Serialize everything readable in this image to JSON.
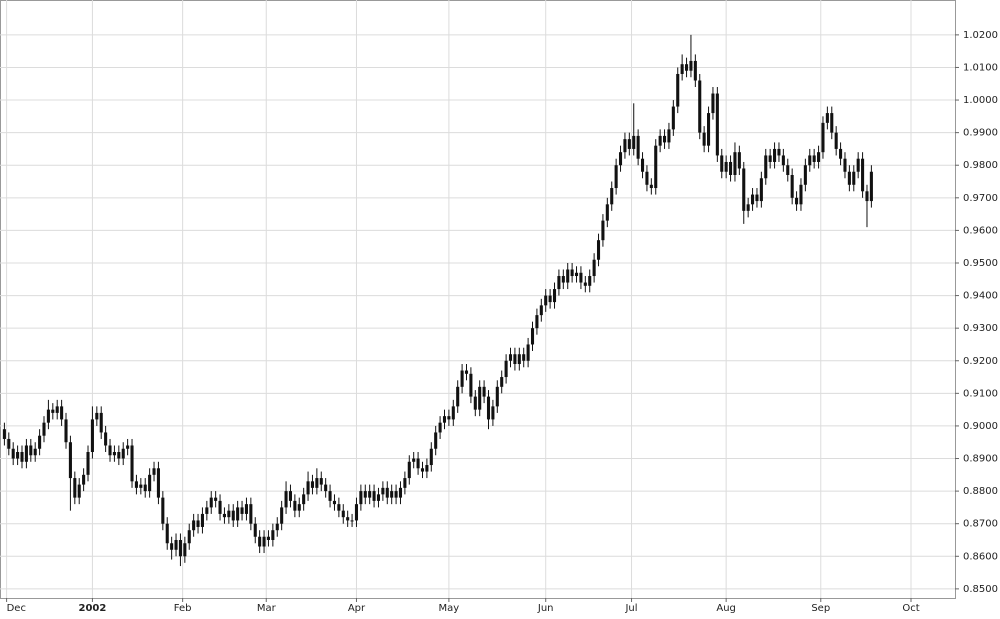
{
  "chart_data": {
    "type": "candlestick",
    "color": "#111111",
    "grid": true,
    "y_axis_side": "right",
    "xlim": [
      -1,
      216
    ],
    "xticks": [
      {
        "value": 0.5,
        "label": "Dec"
      },
      {
        "value": 20,
        "label": "2002"
      },
      {
        "value": 40.5,
        "label": "Feb"
      },
      {
        "value": 59.5,
        "label": "Mar"
      },
      {
        "value": 80,
        "label": "Apr"
      },
      {
        "value": 101,
        "label": "May"
      },
      {
        "value": 123,
        "label": "Jun"
      },
      {
        "value": 142.5,
        "label": "Jul"
      },
      {
        "value": 164,
        "label": "Aug"
      },
      {
        "value": 185.5,
        "label": "Sep"
      },
      {
        "value": 206,
        "label": "Oct"
      }
    ],
    "ylim": [
      0.8472,
      1.0307
    ],
    "yticks": [
      {
        "value": 0.85,
        "label": "0.8500"
      },
      {
        "value": 0.86,
        "label": "0.8600"
      },
      {
        "value": 0.87,
        "label": "0.8700"
      },
      {
        "value": 0.88,
        "label": "0.8800"
      },
      {
        "value": 0.89,
        "label": "0.8900"
      },
      {
        "value": 0.9,
        "label": "0.9000"
      },
      {
        "value": 0.91,
        "label": "0.9100"
      },
      {
        "value": 0.92,
        "label": "0.9200"
      },
      {
        "value": 0.93,
        "label": "0.9300"
      },
      {
        "value": 0.94,
        "label": "0.9400"
      },
      {
        "value": 0.95,
        "label": "0.9500"
      },
      {
        "value": 0.96,
        "label": "0.9600"
      },
      {
        "value": 0.97,
        "label": "0.9700"
      },
      {
        "value": 0.98,
        "label": "0.9800"
      },
      {
        "value": 0.99,
        "label": "0.9900"
      },
      {
        "value": 1.0,
        "label": "1.0000"
      },
      {
        "value": 1.01,
        "label": "1.0100"
      },
      {
        "value": 1.02,
        "label": "1.0200"
      }
    ],
    "open": [
      0.899,
      0.896,
      0.893,
      0.89,
      0.892,
      0.889,
      0.894,
      0.891,
      0.893,
      0.897,
      0.901,
      0.905,
      0.904,
      0.906,
      0.902,
      0.895,
      0.884,
      0.878,
      0.882,
      0.885,
      0.892,
      0.902,
      0.904,
      0.898,
      0.894,
      0.891,
      0.892,
      0.89,
      0.893,
      0.894,
      0.883,
      0.881,
      0.882,
      0.88,
      0.885,
      0.887,
      0.878,
      0.87,
      0.864,
      0.862,
      0.865,
      0.86,
      0.864,
      0.868,
      0.871,
      0.869,
      0.873,
      0.875,
      0.878,
      0.877,
      0.873,
      0.872,
      0.874,
      0.871,
      0.875,
      0.873,
      0.876,
      0.87,
      0.866,
      0.863,
      0.866,
      0.865,
      0.868,
      0.87,
      0.875,
      0.88,
      0.877,
      0.874,
      0.876,
      0.879,
      0.883,
      0.881,
      0.884,
      0.882,
      0.88,
      0.877,
      0.876,
      0.874,
      0.872,
      0.871,
      0.871,
      0.876,
      0.88,
      0.878,
      0.88,
      0.877,
      0.879,
      0.881,
      0.878,
      0.88,
      0.878,
      0.881,
      0.884,
      0.889,
      0.89,
      0.887,
      0.886,
      0.888,
      0.893,
      0.898,
      0.901,
      0.903,
      0.902,
      0.906,
      0.912,
      0.917,
      0.916,
      0.909,
      0.905,
      0.912,
      0.909,
      0.902,
      0.906,
      0.912,
      0.915,
      0.92,
      0.922,
      0.919,
      0.922,
      0.92,
      0.925,
      0.93,
      0.934,
      0.937,
      0.94,
      0.938,
      0.942,
      0.946,
      0.944,
      0.948,
      0.946,
      0.947,
      0.944,
      0.943,
      0.946,
      0.951,
      0.957,
      0.963,
      0.968,
      0.973,
      0.98,
      0.984,
      0.988,
      0.985,
      0.989,
      0.982,
      0.978,
      0.974,
      0.973,
      0.986,
      0.989,
      0.987,
      0.991,
      0.998,
      1.008,
      1.011,
      1.009,
      1.012,
      1.006,
      0.99,
      0.986,
      0.996,
      1.002,
      0.983,
      0.978,
      0.981,
      0.977,
      0.984,
      0.979,
      0.966,
      0.968,
      0.971,
      0.969,
      0.976,
      0.983,
      0.981,
      0.985,
      0.983,
      0.98,
      0.977,
      0.97,
      0.968,
      0.974,
      0.98,
      0.983,
      0.981,
      0.984,
      0.993,
      0.996,
      0.99,
      0.985,
      0.982,
      0.978,
      0.974,
      0.978,
      0.982,
      0.972,
      0.969
    ],
    "high": [
      0.901,
      0.898,
      0.895,
      0.894,
      0.894,
      0.896,
      0.896,
      0.895,
      0.899,
      0.903,
      0.908,
      0.907,
      0.908,
      0.908,
      0.904,
      0.897,
      0.886,
      0.884,
      0.887,
      0.894,
      0.906,
      0.906,
      0.906,
      0.9,
      0.896,
      0.894,
      0.894,
      0.895,
      0.896,
      0.896,
      0.885,
      0.884,
      0.884,
      0.887,
      0.889,
      0.889,
      0.88,
      0.872,
      0.866,
      0.867,
      0.867,
      0.866,
      0.87,
      0.873,
      0.873,
      0.875,
      0.877,
      0.88,
      0.88,
      0.879,
      0.875,
      0.876,
      0.876,
      0.877,
      0.877,
      0.878,
      0.878,
      0.872,
      0.868,
      0.868,
      0.868,
      0.87,
      0.872,
      0.877,
      0.883,
      0.882,
      0.879,
      0.878,
      0.881,
      0.886,
      0.885,
      0.887,
      0.886,
      0.884,
      0.882,
      0.879,
      0.878,
      0.876,
      0.874,
      0.873,
      0.878,
      0.882,
      0.882,
      0.882,
      0.882,
      0.881,
      0.883,
      0.883,
      0.882,
      0.882,
      0.883,
      0.886,
      0.891,
      0.892,
      0.892,
      0.889,
      0.89,
      0.895,
      0.9,
      0.903,
      0.905,
      0.905,
      0.908,
      0.914,
      0.919,
      0.919,
      0.918,
      0.911,
      0.914,
      0.914,
      0.911,
      0.908,
      0.914,
      0.917,
      0.922,
      0.924,
      0.924,
      0.924,
      0.924,
      0.927,
      0.932,
      0.936,
      0.939,
      0.942,
      0.942,
      0.944,
      0.948,
      0.948,
      0.95,
      0.95,
      0.949,
      0.949,
      0.946,
      0.948,
      0.953,
      0.959,
      0.965,
      0.97,
      0.975,
      0.982,
      0.986,
      0.99,
      0.99,
      0.999,
      0.991,
      0.984,
      0.98,
      0.976,
      0.988,
      0.991,
      0.991,
      0.993,
      1.0,
      1.01,
      1.014,
      1.013,
      1.02,
      1.014,
      1.008,
      0.992,
      0.998,
      1.004,
      1.004,
      0.985,
      0.983,
      0.983,
      0.987,
      0.986,
      0.981,
      0.97,
      0.973,
      0.973,
      0.978,
      0.985,
      0.985,
      0.987,
      0.987,
      0.985,
      0.982,
      0.979,
      0.972,
      0.976,
      0.982,
      0.985,
      0.985,
      0.986,
      0.995,
      0.998,
      0.998,
      0.992,
      0.987,
      0.984,
      0.98,
      0.98,
      0.984,
      0.984,
      0.974,
      0.98
    ],
    "low": [
      0.894,
      0.891,
      0.888,
      0.888,
      0.887,
      0.887,
      0.889,
      0.889,
      0.891,
      0.895,
      0.899,
      0.902,
      0.902,
      0.9,
      0.893,
      0.874,
      0.876,
      0.876,
      0.88,
      0.883,
      0.89,
      0.9,
      0.896,
      0.892,
      0.889,
      0.889,
      0.888,
      0.888,
      0.891,
      0.881,
      0.879,
      0.879,
      0.878,
      0.878,
      0.883,
      0.876,
      0.868,
      0.862,
      0.859,
      0.86,
      0.857,
      0.858,
      0.862,
      0.866,
      0.867,
      0.867,
      0.871,
      0.873,
      0.875,
      0.871,
      0.87,
      0.87,
      0.869,
      0.869,
      0.871,
      0.871,
      0.868,
      0.864,
      0.861,
      0.861,
      0.863,
      0.863,
      0.866,
      0.868,
      0.873,
      0.875,
      0.872,
      0.872,
      0.874,
      0.877,
      0.879,
      0.879,
      0.88,
      0.878,
      0.875,
      0.874,
      0.872,
      0.87,
      0.869,
      0.869,
      0.869,
      0.874,
      0.876,
      0.876,
      0.875,
      0.875,
      0.877,
      0.876,
      0.876,
      0.876,
      0.876,
      0.879,
      0.882,
      0.887,
      0.885,
      0.884,
      0.884,
      0.886,
      0.891,
      0.896,
      0.899,
      0.9,
      0.9,
      0.904,
      0.91,
      0.914,
      0.907,
      0.903,
      0.903,
      0.907,
      0.899,
      0.9,
      0.904,
      0.91,
      0.913,
      0.918,
      0.917,
      0.917,
      0.918,
      0.918,
      0.923,
      0.928,
      0.932,
      0.935,
      0.936,
      0.936,
      0.94,
      0.942,
      0.942,
      0.944,
      0.944,
      0.942,
      0.941,
      0.941,
      0.944,
      0.949,
      0.955,
      0.961,
      0.966,
      0.971,
      0.978,
      0.982,
      0.983,
      0.983,
      0.98,
      0.976,
      0.972,
      0.971,
      0.971,
      0.984,
      0.985,
      0.985,
      0.989,
      0.996,
      1.006,
      1.007,
      1.007,
      1.004,
      0.988,
      0.984,
      0.984,
      0.994,
      0.981,
      0.976,
      0.976,
      0.975,
      0.975,
      0.977,
      0.962,
      0.964,
      0.966,
      0.967,
      0.967,
      0.974,
      0.979,
      0.979,
      0.981,
      0.978,
      0.975,
      0.968,
      0.966,
      0.966,
      0.972,
      0.978,
      0.979,
      0.979,
      0.982,
      0.991,
      0.988,
      0.983,
      0.98,
      0.976,
      0.972,
      0.972,
      0.976,
      0.97,
      0.961,
      0.967
    ],
    "close": [
      0.896,
      0.893,
      0.89,
      0.892,
      0.889,
      0.894,
      0.891,
      0.893,
      0.897,
      0.901,
      0.905,
      0.904,
      0.906,
      0.902,
      0.895,
      0.884,
      0.878,
      0.882,
      0.885,
      0.892,
      0.902,
      0.904,
      0.898,
      0.894,
      0.891,
      0.892,
      0.89,
      0.893,
      0.894,
      0.883,
      0.881,
      0.882,
      0.88,
      0.885,
      0.887,
      0.878,
      0.87,
      0.864,
      0.862,
      0.865,
      0.86,
      0.864,
      0.868,
      0.871,
      0.869,
      0.873,
      0.875,
      0.878,
      0.877,
      0.873,
      0.872,
      0.874,
      0.871,
      0.875,
      0.873,
      0.876,
      0.87,
      0.866,
      0.863,
      0.866,
      0.865,
      0.868,
      0.87,
      0.875,
      0.88,
      0.877,
      0.874,
      0.876,
      0.879,
      0.883,
      0.881,
      0.884,
      0.882,
      0.88,
      0.877,
      0.876,
      0.874,
      0.872,
      0.871,
      0.871,
      0.876,
      0.88,
      0.878,
      0.88,
      0.877,
      0.879,
      0.881,
      0.878,
      0.88,
      0.878,
      0.881,
      0.884,
      0.889,
      0.89,
      0.887,
      0.886,
      0.888,
      0.893,
      0.898,
      0.901,
      0.903,
      0.902,
      0.906,
      0.912,
      0.917,
      0.916,
      0.909,
      0.905,
      0.912,
      0.909,
      0.902,
      0.906,
      0.912,
      0.915,
      0.92,
      0.922,
      0.919,
      0.922,
      0.92,
      0.925,
      0.93,
      0.934,
      0.937,
      0.94,
      0.938,
      0.942,
      0.946,
      0.944,
      0.948,
      0.946,
      0.947,
      0.944,
      0.943,
      0.946,
      0.951,
      0.957,
      0.963,
      0.968,
      0.973,
      0.98,
      0.984,
      0.988,
      0.985,
      0.989,
      0.982,
      0.978,
      0.974,
      0.973,
      0.986,
      0.989,
      0.987,
      0.991,
      0.998,
      1.008,
      1.011,
      1.009,
      1.012,
      1.006,
      0.99,
      0.986,
      0.996,
      1.002,
      0.983,
      0.978,
      0.981,
      0.977,
      0.984,
      0.979,
      0.966,
      0.968,
      0.971,
      0.969,
      0.976,
      0.983,
      0.981,
      0.985,
      0.983,
      0.98,
      0.977,
      0.97,
      0.968,
      0.974,
      0.98,
      0.983,
      0.981,
      0.984,
      0.993,
      0.996,
      0.99,
      0.985,
      0.982,
      0.978,
      0.974,
      0.978,
      0.982,
      0.972,
      0.969,
      0.978
    ]
  }
}
